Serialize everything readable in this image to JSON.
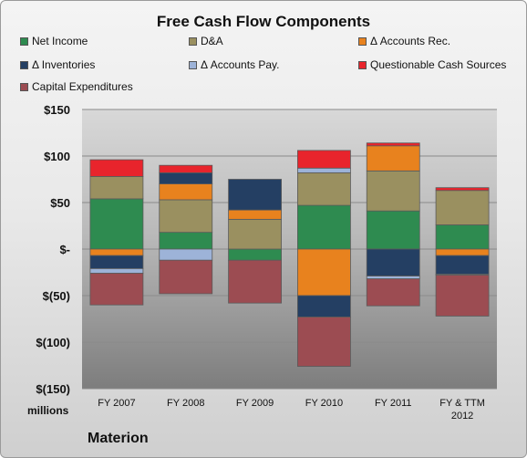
{
  "chart_data": {
    "type": "bar",
    "stacked": true,
    "title": "Free Cash Flow Components",
    "categories": [
      "FY 2007",
      "FY 2008",
      "FY 2009",
      "FY 2010",
      "FY 2011",
      "FY & TTM 2012"
    ],
    "series": [
      {
        "name": "Net Income",
        "color": "#2e8b50",
        "values": [
          54,
          18,
          -12,
          47,
          41,
          26
        ]
      },
      {
        "name": "D&A",
        "color": "#9a9060",
        "values": [
          24,
          35,
          32,
          35,
          43,
          37
        ]
      },
      {
        "name": "Δ Accounts Rec.",
        "color": "#e8821e",
        "values": [
          -7,
          17,
          10,
          -50,
          27,
          -7
        ]
      },
      {
        "name": "Δ Inventories",
        "color": "#243f63",
        "values": [
          -14,
          12,
          33,
          -23,
          -29,
          -20
        ]
      },
      {
        "name": "Δ Accounts Pay.",
        "color": "#9db3d8",
        "values": [
          -5,
          -12,
          0,
          5,
          -3,
          -1
        ]
      },
      {
        "name": "Questionable Cash Sources",
        "color": "#e8242c",
        "values": [
          18,
          8,
          0,
          19,
          3,
          3
        ]
      },
      {
        "name": "Capital Expenditures",
        "color": "#9c4c52",
        "values": [
          -34,
          -36,
          -46,
          -53,
          -29,
          -44
        ]
      }
    ],
    "yticks": [
      "$150",
      "$100",
      "$50",
      "$-",
      "$(50)",
      "$(100)",
      "$(150)"
    ],
    "ylim": [
      -150,
      150
    ],
    "ylabel": "millions",
    "grid": true,
    "legend_position": "top"
  },
  "footer": {
    "company": "Materion"
  }
}
